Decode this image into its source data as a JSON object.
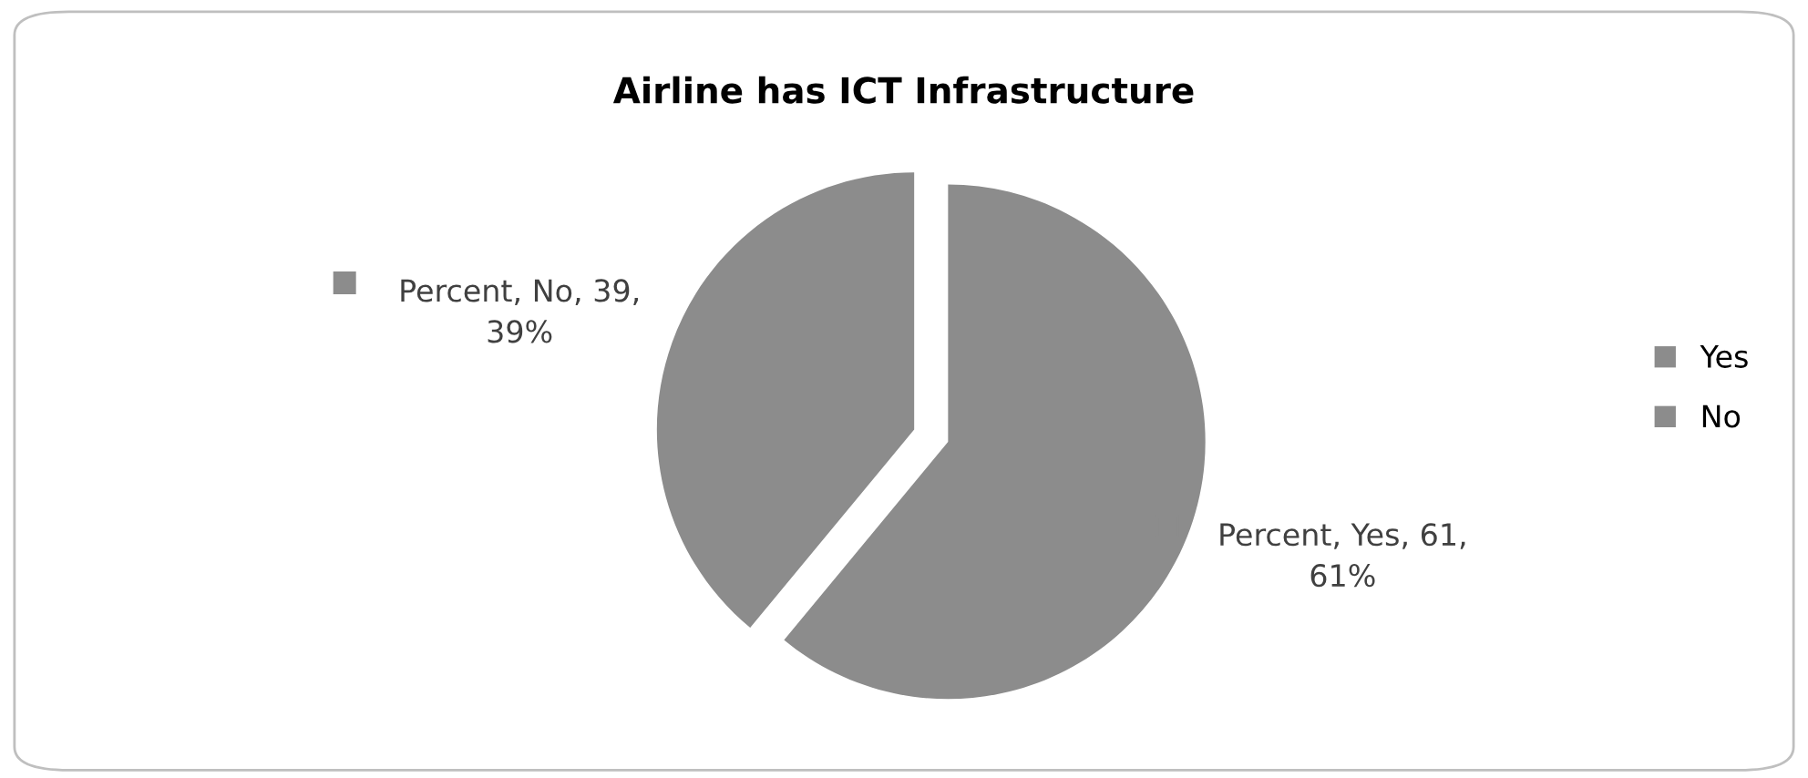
{
  "chart_data": {
    "type": "pie",
    "title": "Airline has ICT Infrastructure",
    "categories": [
      "Yes",
      "No"
    ],
    "values": [
      61,
      39
    ],
    "colors": [
      "#8c8c8c",
      "#8c8c8c"
    ],
    "value_labels": [
      "Percent, Yes, 61, 61%",
      "Percent, No, 39, 39%"
    ],
    "legend": "right"
  }
}
